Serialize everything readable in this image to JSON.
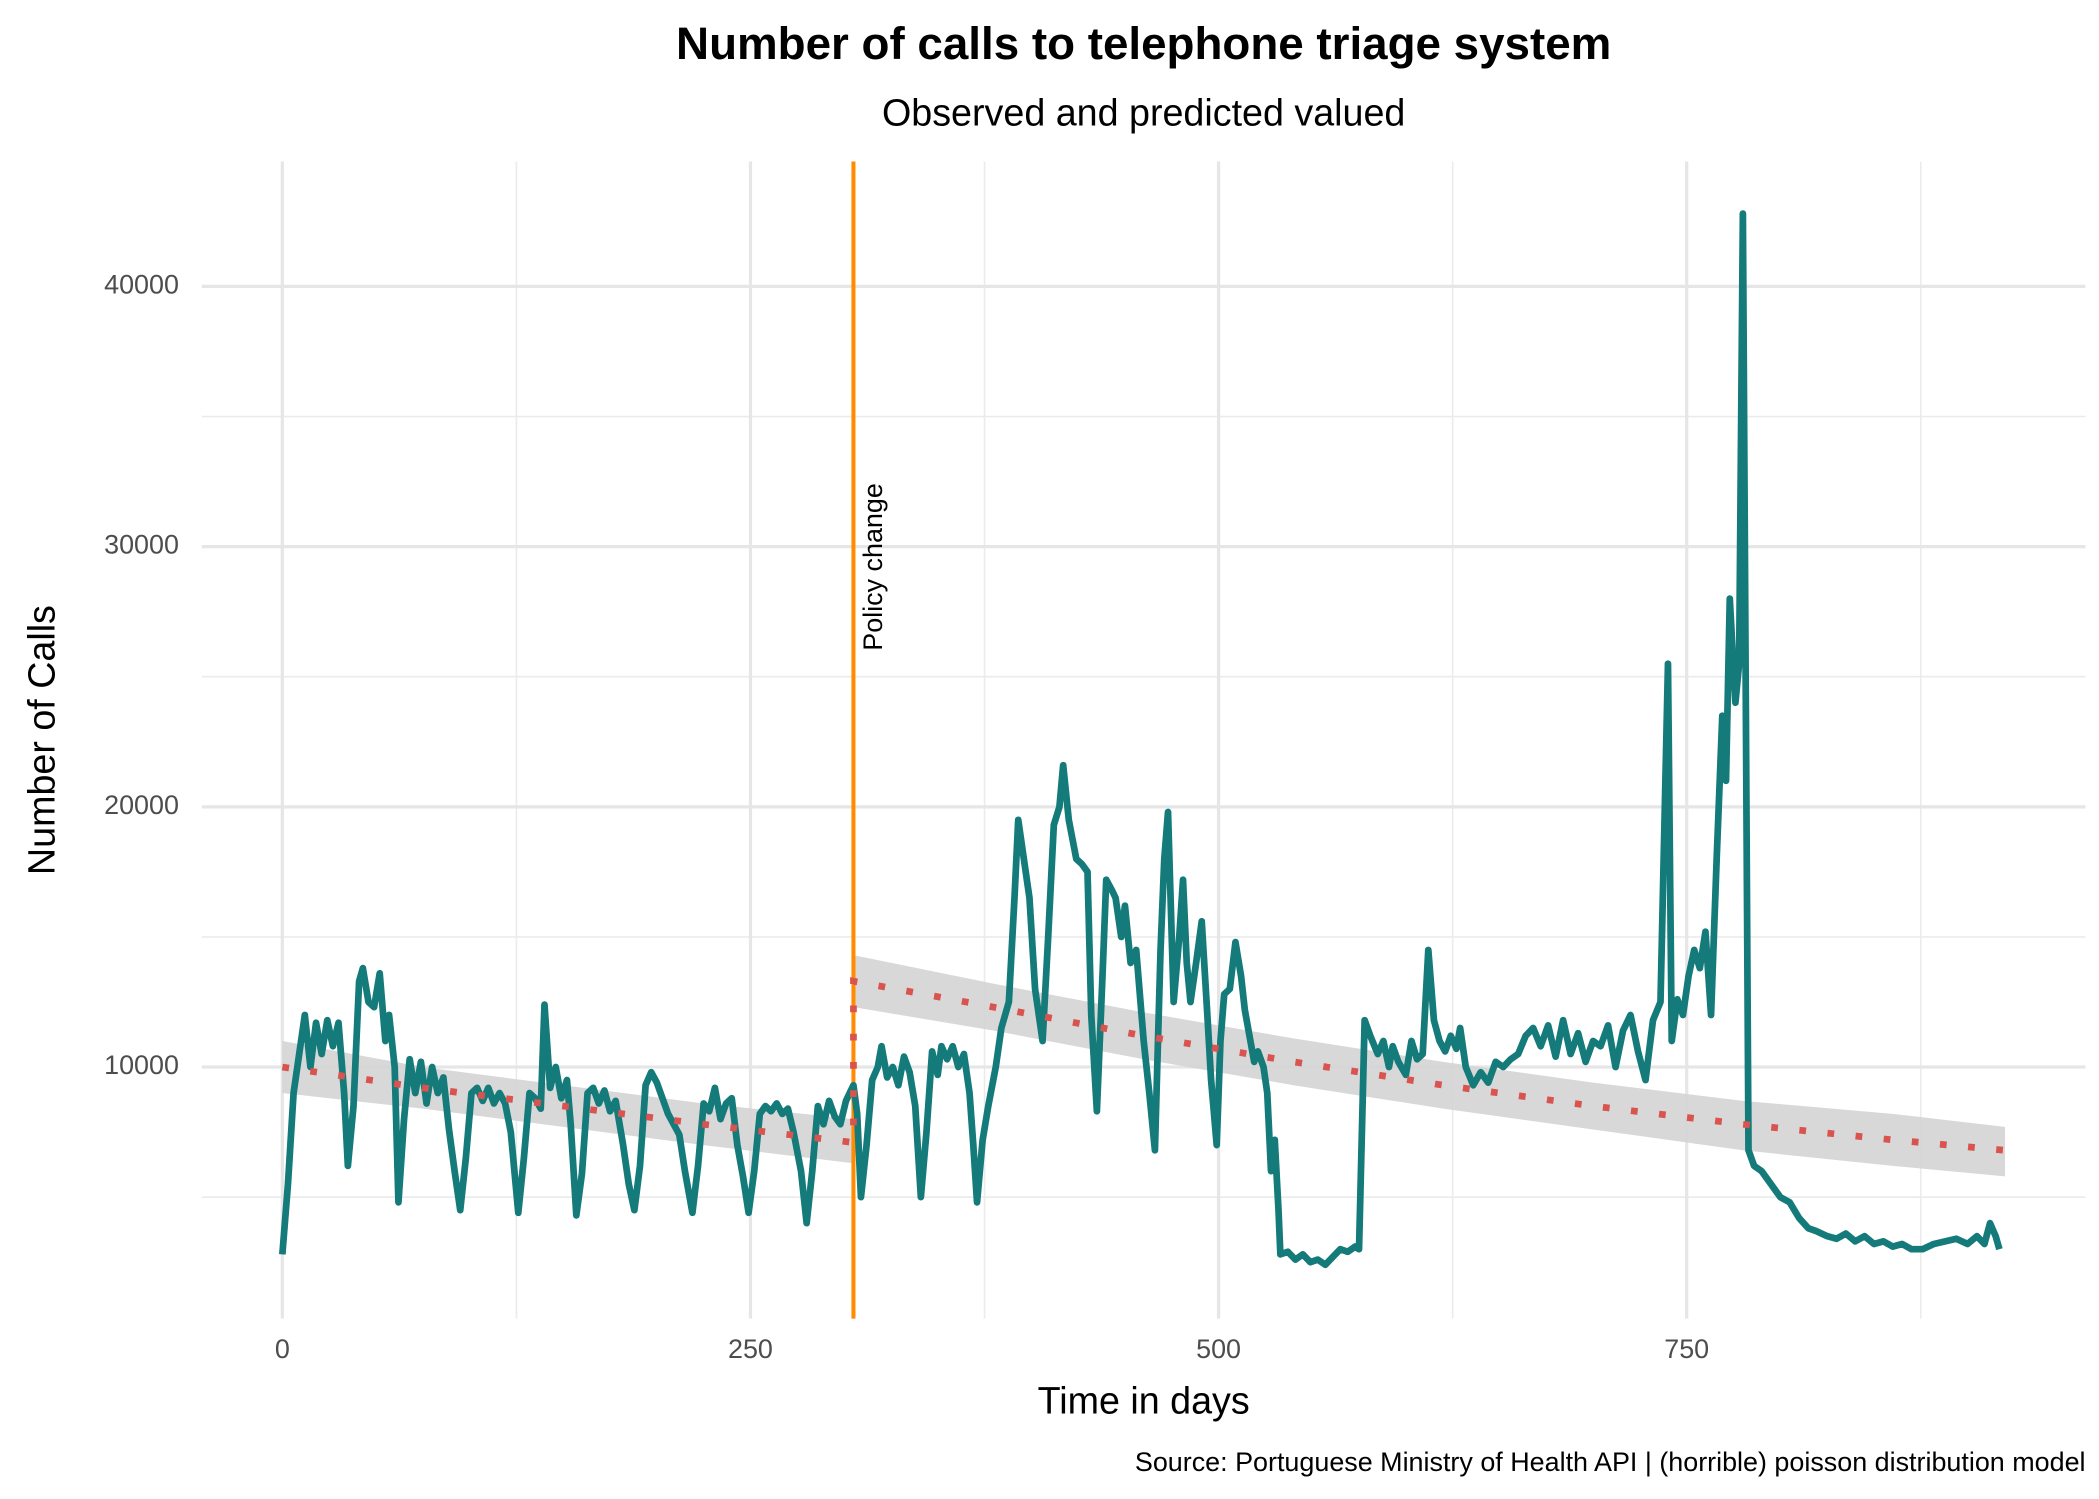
{
  "chart_data": {
    "type": "line",
    "title": "Number of calls to telephone triage system",
    "subtitle": "Observed and predicted valued",
    "x_label": "Time in days",
    "y_label": "Number of Calls",
    "caption": "Source: Portuguese Ministry of Health API | (horrible) poisson distribution model",
    "xlim": [
      -43,
      963
    ],
    "ylim": [
      330,
      44800
    ],
    "xticks": [
      0,
      250,
      500,
      750
    ],
    "yticks": [
      10000,
      20000,
      30000,
      40000
    ],
    "minor_xticks": [
      125,
      375,
      625,
      875
    ],
    "minor_yticks": [
      5000,
      15000,
      25000,
      35000
    ],
    "grid": true,
    "observed": {
      "color": "#147a7a",
      "x": [
        0,
        3,
        6,
        9,
        12,
        15,
        18,
        21,
        24,
        27,
        30,
        33,
        35,
        38,
        41,
        43,
        46,
        49,
        52,
        55,
        57,
        60,
        62,
        65,
        68,
        71,
        74,
        77,
        80,
        83,
        86,
        89,
        92,
        95,
        98,
        101,
        104,
        107,
        110,
        113,
        116,
        119,
        122,
        126,
        129,
        132,
        135,
        138,
        140,
        143,
        146,
        149,
        152,
        154,
        157,
        160,
        163,
        166,
        169,
        172,
        175,
        178,
        182,
        185,
        188,
        191,
        194,
        197,
        200,
        203,
        206,
        209,
        212,
        215,
        219,
        222,
        225,
        228,
        231,
        234,
        237,
        240,
        243,
        246,
        249,
        252,
        255,
        258,
        261,
        264,
        267,
        270,
        273,
        277,
        280,
        283,
        286,
        289,
        292,
        295,
        298,
        301,
        305,
        307,
        309,
        312,
        315,
        318,
        320,
        323,
        326,
        329,
        332,
        335,
        338,
        341,
        344,
        347,
        350,
        352,
        355,
        358,
        361,
        364,
        367,
        369,
        371,
        374,
        377,
        381,
        384,
        388,
        391,
        393,
        396,
        399,
        402,
        406,
        409,
        412,
        415,
        417,
        420,
        424,
        427,
        430,
        432,
        435,
        438,
        440,
        443,
        445,
        448,
        450,
        453,
        456,
        460,
        463,
        466,
        469,
        471,
        473,
        476,
        479,
        481,
        483,
        485,
        488,
        491,
        494,
        496,
        499,
        501,
        503,
        506,
        509,
        512,
        514,
        517,
        519,
        521,
        524,
        526,
        528,
        530,
        532,
        533,
        537,
        541,
        545,
        549,
        553,
        557,
        561,
        565,
        569,
        573,
        575,
        578,
        581,
        585,
        588,
        591,
        593,
        596,
        600,
        603,
        606,
        609,
        612,
        615,
        618,
        621,
        624,
        627,
        629,
        632,
        636,
        640,
        644,
        648,
        652,
        656,
        660,
        664,
        668,
        672,
        676,
        680,
        684,
        688,
        692,
        696,
        700,
        704,
        708,
        712,
        716,
        720,
        724,
        728,
        732,
        736,
        740,
        742,
        745,
        748,
        751,
        754,
        757,
        760,
        763,
        766,
        769,
        771,
        773,
        776,
        778,
        780,
        783,
        786,
        790,
        795,
        800,
        805,
        810,
        815,
        819,
        825,
        830,
        835,
        840,
        845,
        850,
        855,
        860,
        865,
        870,
        876,
        882,
        888,
        894,
        900,
        905,
        909,
        912,
        915,
        917
      ],
      "values": [
        2800,
        5500,
        9000,
        10500,
        12000,
        10000,
        11700,
        10500,
        11800,
        10800,
        11700,
        9000,
        6200,
        8500,
        13300,
        13800,
        12500,
        12300,
        13600,
        11000,
        12000,
        10000,
        4800,
        8000,
        10300,
        9000,
        10200,
        8600,
        10000,
        9000,
        9600,
        7600,
        6000,
        4500,
        6500,
        9000,
        9200,
        8700,
        9200,
        8600,
        9000,
        8600,
        7500,
        4400,
        6500,
        9000,
        8800,
        8400,
        12400,
        9200,
        10000,
        8800,
        9500,
        7800,
        4300,
        5900,
        9000,
        9200,
        8600,
        9100,
        8300,
        8700,
        7000,
        5500,
        4500,
        6200,
        9300,
        9800,
        9400,
        8800,
        8200,
        7800,
        7400,
        6000,
        4400,
        6200,
        8600,
        8300,
        9200,
        8000,
        8600,
        8800,
        7000,
        5800,
        4400,
        6000,
        8200,
        8500,
        8300,
        8600,
        8200,
        8400,
        7500,
        6000,
        4000,
        6000,
        8500,
        7800,
        8700,
        8100,
        7800,
        8700,
        9300,
        8200,
        5000,
        7000,
        9500,
        10000,
        10800,
        9600,
        10000,
        9300,
        10400,
        9800,
        8500,
        5000,
        7500,
        10600,
        9700,
        10800,
        10300,
        10800,
        10000,
        10500,
        9000,
        7000,
        4800,
        7200,
        8500,
        10000,
        11500,
        12500,
        16500,
        19500,
        18000,
        16500,
        13000,
        11000,
        15000,
        19300,
        20000,
        21600,
        19500,
        18000,
        17800,
        17500,
        12000,
        8300,
        13500,
        17200,
        16800,
        16500,
        15000,
        16200,
        14000,
        14500,
        11000,
        9000,
        6800,
        14500,
        18000,
        19800,
        12500,
        15000,
        17200,
        14000,
        12500,
        14000,
        15600,
        12000,
        9500,
        7000,
        11000,
        12800,
        13000,
        14800,
        13500,
        12200,
        11000,
        10200,
        10600,
        10000,
        9000,
        6000,
        7200,
        4500,
        2800,
        2900,
        2600,
        2800,
        2500,
        2600,
        2400,
        2700,
        3000,
        2900,
        3100,
        3000,
        11800,
        11200,
        10500,
        11000,
        10000,
        10800,
        10200,
        9700,
        11000,
        10300,
        10500,
        14500,
        11800,
        11000,
        10600,
        11200,
        10700,
        11500,
        10000,
        9300,
        9800,
        9400,
        10200,
        10000,
        10300,
        10500,
        11200,
        11500,
        10800,
        11600,
        10400,
        11800,
        10500,
        11300,
        10200,
        11000,
        10800,
        11600,
        10000,
        11400,
        12000,
        10600,
        9500,
        11800,
        12500,
        25500,
        11000,
        12600,
        12000,
        13500,
        14500,
        13800,
        15200,
        12000,
        18000,
        23500,
        21000,
        28000,
        24000,
        25500,
        42800,
        6800,
        6200,
        6000,
        5500,
        5000,
        4800,
        4200,
        3800,
        3700,
        3500,
        3400,
        3600,
        3300,
        3500,
        3200,
        3300,
        3100,
        3200,
        3000,
        3000,
        3200,
        3300,
        3400,
        3200,
        3500,
        3200,
        4000,
        3500,
        3000
      ]
    },
    "prediction": {
      "color": "#d9534f",
      "band_color": "#d4d4d4",
      "x": [
        0,
        75,
        150,
        225,
        305,
        305,
        380,
        460,
        540,
        620,
        700,
        780,
        860,
        920
      ],
      "values": [
        10000,
        9200,
        8500,
        7800,
        7100,
        13300,
        12300,
        11200,
        10200,
        9300,
        8500,
        7800,
        7200,
        6800
      ],
      "lower": [
        9000,
        8400,
        7700,
        7000,
        6300,
        12300,
        11400,
        10300,
        9300,
        8400,
        7600,
        6800,
        6200,
        5800
      ],
      "upper": [
        11000,
        10000,
        9300,
        8600,
        8000,
        14300,
        13200,
        12100,
        11100,
        10200,
        9400,
        8700,
        8200,
        7700
      ]
    },
    "vline": {
      "x": 305,
      "color": "#ff8c00",
      "label": "Policy change",
      "label_y": 26000
    }
  }
}
